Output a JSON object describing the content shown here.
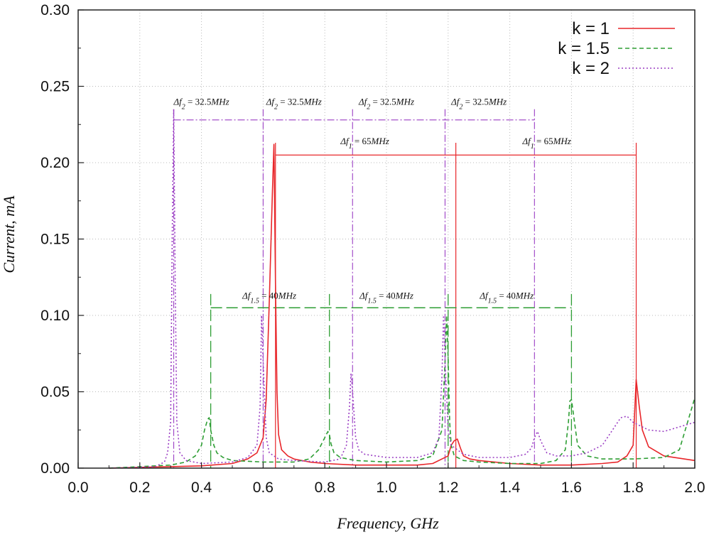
{
  "chart_data": {
    "type": "line",
    "title": "",
    "xlabel": "Frequency, GHz",
    "ylabel": "Current, mA",
    "xlim": [
      0.0,
      2.0
    ],
    "ylim": [
      0.0,
      0.3
    ],
    "xticks": [
      "0.0",
      "0.2",
      "0.4",
      "0.6",
      "0.8",
      "1.0",
      "1.2",
      "1.4",
      "1.6",
      "1.8",
      "2.0"
    ],
    "yticks": [
      "0.00",
      "0.05",
      "0.10",
      "0.15",
      "0.20",
      "0.25",
      "0.30"
    ],
    "grid": true,
    "legend_position": "top-right",
    "series": [
      {
        "name": "k = 1",
        "color": "#e8262a",
        "dash": "solid",
        "x": [
          0.1,
          0.2,
          0.3,
          0.4,
          0.5,
          0.55,
          0.58,
          0.6,
          0.61,
          0.62,
          0.63,
          0.635,
          0.64,
          0.645,
          0.65,
          0.66,
          0.68,
          0.7,
          0.75,
          0.8,
          0.9,
          1.0,
          1.1,
          1.15,
          1.2,
          1.21,
          1.22,
          1.23,
          1.24,
          1.25,
          1.27,
          1.3,
          1.4,
          1.5,
          1.6,
          1.7,
          1.75,
          1.78,
          1.8,
          1.81,
          1.82,
          1.83,
          1.85,
          1.9,
          2.0
        ],
        "y": [
          0.0,
          0.0005,
          0.001,
          0.0015,
          0.003,
          0.006,
          0.01,
          0.02,
          0.045,
          0.11,
          0.18,
          0.212,
          0.12,
          0.05,
          0.022,
          0.012,
          0.008,
          0.006,
          0.004,
          0.003,
          0.002,
          0.002,
          0.002,
          0.003,
          0.008,
          0.015,
          0.018,
          0.019,
          0.013,
          0.008,
          0.006,
          0.005,
          0.003,
          0.002,
          0.002,
          0.003,
          0.004,
          0.008,
          0.015,
          0.058,
          0.04,
          0.025,
          0.014,
          0.008,
          0.005
        ]
      },
      {
        "name": "k = 1.5",
        "color": "#2e9e34",
        "dash": "6,4",
        "x": [
          0.1,
          0.2,
          0.3,
          0.35,
          0.38,
          0.4,
          0.41,
          0.42,
          0.425,
          0.43,
          0.44,
          0.45,
          0.47,
          0.5,
          0.6,
          0.7,
          0.75,
          0.78,
          0.8,
          0.81,
          0.815,
          0.82,
          0.83,
          0.85,
          0.9,
          1.0,
          1.1,
          1.15,
          1.18,
          1.19,
          1.195,
          1.2,
          1.205,
          1.21,
          1.22,
          1.25,
          1.3,
          1.4,
          1.5,
          1.55,
          1.58,
          1.59,
          1.595,
          1.6,
          1.61,
          1.62,
          1.65,
          1.7,
          1.8,
          1.9,
          1.95,
          2.0
        ],
        "y": [
          0.0,
          0.001,
          0.002,
          0.004,
          0.008,
          0.015,
          0.025,
          0.032,
          0.033,
          0.025,
          0.015,
          0.01,
          0.007,
          0.005,
          0.004,
          0.004,
          0.006,
          0.012,
          0.02,
          0.024,
          0.022,
          0.016,
          0.01,
          0.007,
          0.005,
          0.004,
          0.005,
          0.008,
          0.025,
          0.07,
          0.1,
          0.072,
          0.03,
          0.015,
          0.008,
          0.005,
          0.004,
          0.003,
          0.003,
          0.005,
          0.012,
          0.03,
          0.044,
          0.045,
          0.03,
          0.015,
          0.008,
          0.006,
          0.006,
          0.007,
          0.012,
          0.046
        ]
      },
      {
        "name": "k = 2",
        "color": "#9b3fc4",
        "dash": "2,3",
        "x": [
          0.1,
          0.2,
          0.25,
          0.28,
          0.29,
          0.3,
          0.305,
          0.31,
          0.315,
          0.32,
          0.33,
          0.35,
          0.4,
          0.5,
          0.55,
          0.58,
          0.59,
          0.595,
          0.6,
          0.61,
          0.62,
          0.65,
          0.7,
          0.8,
          0.85,
          0.87,
          0.88,
          0.885,
          0.89,
          0.9,
          0.91,
          0.93,
          1.0,
          1.1,
          1.15,
          1.17,
          1.18,
          1.185,
          1.19,
          1.2,
          1.21,
          1.25,
          1.3,
          1.4,
          1.45,
          1.47,
          1.48,
          1.49,
          1.5,
          1.52,
          1.55,
          1.6,
          1.65,
          1.7,
          1.73,
          1.76,
          1.78,
          1.8,
          1.85,
          1.9,
          2.0
        ],
        "y": [
          0.0,
          0.0005,
          0.001,
          0.004,
          0.01,
          0.03,
          0.15,
          0.235,
          0.12,
          0.03,
          0.01,
          0.005,
          0.003,
          0.004,
          0.007,
          0.015,
          0.04,
          0.1,
          0.07,
          0.02,
          0.01,
          0.006,
          0.005,
          0.004,
          0.006,
          0.015,
          0.04,
          0.062,
          0.05,
          0.02,
          0.012,
          0.009,
          0.007,
          0.007,
          0.01,
          0.02,
          0.06,
          0.1,
          0.07,
          0.025,
          0.015,
          0.009,
          0.007,
          0.007,
          0.009,
          0.013,
          0.02,
          0.024,
          0.018,
          0.01,
          0.008,
          0.008,
          0.01,
          0.015,
          0.024,
          0.033,
          0.034,
          0.03,
          0.025,
          0.024,
          0.03
        ]
      }
    ],
    "annotations": {
      "k2": {
        "label_main": "Δf",
        "label_sub": "2",
        "label_value": " = 32.5",
        "label_unit": "MHz",
        "y_line": 0.228,
        "color": "#9b3fc4",
        "markers_x": [
          0.31,
          0.6,
          0.89,
          1.19,
          1.48
        ],
        "marker_top": 0.235,
        "label_positions_x": [
          0.4,
          0.7,
          1.0,
          1.3
        ],
        "label_y": 0.238
      },
      "k1": {
        "label_main": "Δf",
        "label_sub": "1",
        "label_value": " = 65",
        "label_unit": "MHz",
        "y_line": 0.205,
        "color": "#e8262a",
        "span": [
          0.64,
          1.81
        ],
        "markers_x": [
          0.64,
          1.225,
          1.81
        ],
        "marker_top": 0.213,
        "label_positions_x": [
          0.93,
          1.52
        ],
        "label_y": 0.212
      },
      "k15": {
        "label_main": "Δf",
        "label_sub": "1.5",
        "label_value": " = 40",
        "label_unit": "MHz",
        "y_line": 0.105,
        "color": "#2e9e34",
        "span": [
          0.43,
          1.6
        ],
        "markers_x": [
          0.43,
          0.815,
          1.2,
          1.6
        ],
        "marker_top": 0.114,
        "label_positions_x": [
          0.62,
          1.0,
          1.39
        ],
        "label_y": 0.111
      }
    }
  }
}
